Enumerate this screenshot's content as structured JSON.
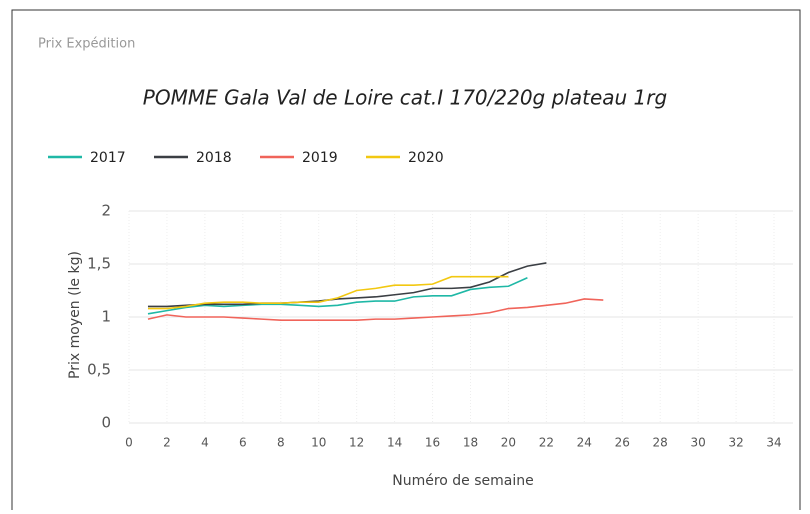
{
  "header": "Prix Expédition",
  "chart_data": {
    "type": "line",
    "title": "POMME Gala Val de Loire cat.I 170/220g plateau 1rg",
    "x_label": "Numéro de semaine",
    "y_label": "Prix moyen  (le kg)",
    "x": [
      1,
      2,
      3,
      4,
      5,
      6,
      7,
      8,
      9,
      10,
      11,
      12,
      13,
      14,
      15,
      16,
      17,
      18,
      19,
      20,
      21,
      22,
      23,
      24,
      25
    ],
    "series": [
      {
        "name": "2017",
        "color": "#1fb8a6",
        "values": [
          1.03,
          1.06,
          1.09,
          1.11,
          1.1,
          1.11,
          1.12,
          1.12,
          1.11,
          1.1,
          1.11,
          1.14,
          1.15,
          1.15,
          1.19,
          1.2,
          1.2,
          1.26,
          1.28,
          1.29,
          1.37,
          null,
          null,
          null,
          null
        ]
      },
      {
        "name": "2018",
        "color": "#3b3f44",
        "values": [
          1.1,
          1.1,
          1.11,
          1.12,
          1.12,
          1.12,
          1.13,
          1.13,
          1.14,
          1.15,
          1.17,
          1.18,
          1.19,
          1.21,
          1.23,
          1.27,
          1.27,
          1.28,
          1.33,
          1.42,
          1.48,
          1.51,
          null,
          null,
          null
        ]
      },
      {
        "name": "2019",
        "color": "#f0645a",
        "values": [
          0.98,
          1.02,
          1.0,
          1.0,
          1.0,
          0.99,
          0.98,
          0.97,
          0.97,
          0.97,
          0.97,
          0.97,
          0.98,
          0.98,
          0.99,
          1.0,
          1.01,
          1.02,
          1.04,
          1.08,
          1.09,
          1.11,
          1.13,
          1.17,
          1.16
        ]
      },
      {
        "name": "2020",
        "color": "#f2c811",
        "values": [
          1.08,
          1.08,
          1.1,
          1.13,
          1.14,
          1.14,
          1.13,
          1.13,
          1.14,
          1.14,
          1.18,
          1.25,
          1.27,
          1.3,
          1.3,
          1.31,
          1.38,
          1.38,
          1.38,
          1.38,
          null,
          null,
          null,
          null,
          null
        ]
      }
    ],
    "xlim": [
      0,
      35
    ],
    "xticks": [
      0,
      2,
      4,
      6,
      8,
      10,
      12,
      14,
      16,
      18,
      20,
      22,
      24,
      26,
      28,
      30,
      32,
      34
    ],
    "ylim": [
      0,
      2
    ],
    "yticks": [
      0,
      {
        "value": 0.5,
        "label": "0,5"
      },
      1,
      {
        "value": 1.5,
        "label": "1,5"
      },
      2
    ],
    "grid": true
  }
}
